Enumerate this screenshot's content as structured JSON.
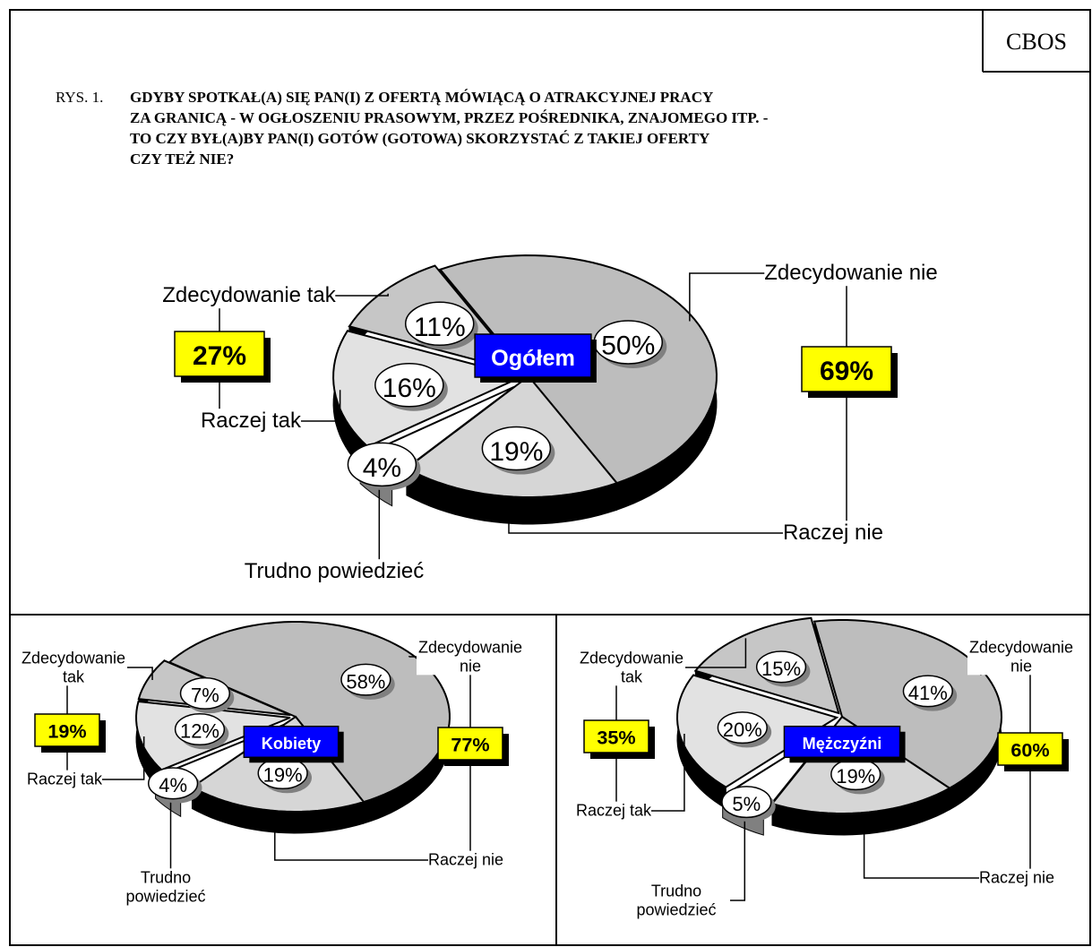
{
  "source": "CBOS",
  "figure": "RYS. 1.",
  "title": [
    "GDYBY SPOTKAŁ(A) SIĘ PAN(I) Z OFERTĄ MÓWIĄCĄ O ATRAKCYJNEJ PRACY",
    "ZA GRANICĄ - W OGŁOSZENIU PRASOWYM, PRZEZ POŚREDNIKA, ZNAJOMEGO ITP. -",
    "TO CZY BYŁ(A)BY PAN(I) GOTÓW (GOTOWA) SKORZYSTAĆ Z TAKIEJ OFERTY",
    "CZY TEŻ NIE?"
  ],
  "chart_data": [
    {
      "type": "pie",
      "label": "Ogółem",
      "categories": [
        "Zdecydowanie nie",
        "Raczej nie",
        "Trudno powiedzieć",
        "Raczej tak",
        "Zdecydowanie tak"
      ],
      "values": [
        50,
        19,
        4,
        16,
        11
      ],
      "value_labels": [
        "50%",
        "19%",
        "4%",
        "16%",
        "11%"
      ],
      "colors": [
        "#bdbdbd",
        "#d6d6d6",
        "#ffffff",
        "#e2e2e2",
        "#c6c6c6"
      ],
      "totals": [
        27,
        69
      ],
      "total_labels": [
        "27%",
        "69%"
      ]
    },
    {
      "type": "pie",
      "label": "Kobiety",
      "categories": [
        "Zdecydowanie nie",
        "Raczej nie",
        "Trudno powiedzieć",
        "Raczej tak",
        "Zdecydowanie tak"
      ],
      "values": [
        58,
        19,
        4,
        12,
        7
      ],
      "value_labels": [
        "58%",
        "19%",
        "4%",
        "12%",
        "7%"
      ],
      "colors": [
        "#bdbdbd",
        "#d6d6d6",
        "#ffffff",
        "#e2e2e2",
        "#c6c6c6"
      ],
      "totals": [
        19,
        77
      ],
      "total_labels": [
        "19%",
        "77%"
      ]
    },
    {
      "type": "pie",
      "label": "Mężczyźni",
      "categories": [
        "Zdecydowanie nie",
        "Raczej nie",
        "Trudno powiedzieć",
        "Raczej tak",
        "Zdecydowanie tak"
      ],
      "values": [
        41,
        19,
        5,
        20,
        15
      ],
      "value_labels": [
        "41%",
        "19%",
        "5%",
        "20%",
        "15%"
      ],
      "colors": [
        "#bdbdbd",
        "#d6d6d6",
        "#ffffff",
        "#e2e2e2",
        "#c6c6c6"
      ],
      "totals": [
        35,
        60
      ],
      "total_labels": [
        "35%",
        "60%"
      ]
    }
  ]
}
